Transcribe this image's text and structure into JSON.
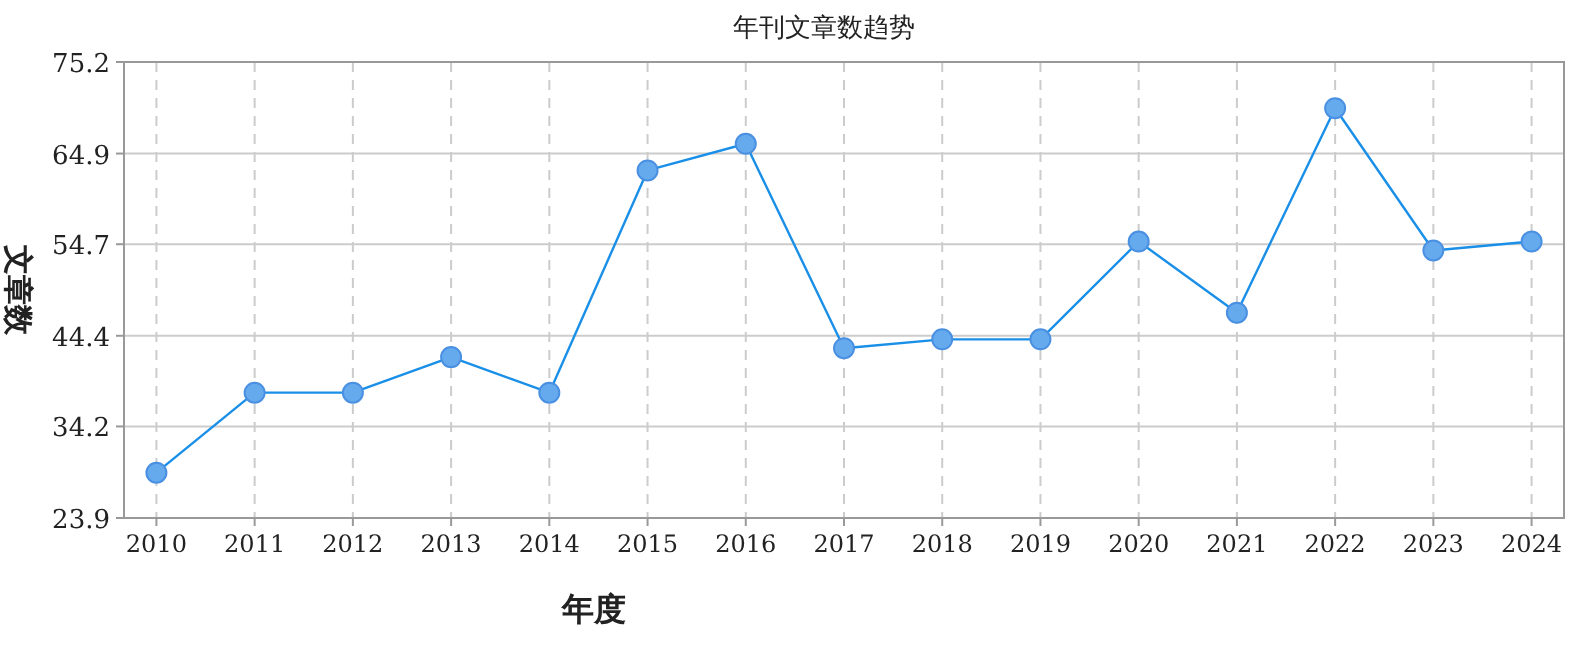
{
  "chart_data": {
    "type": "line",
    "title": "年刊文章数趋势",
    "xlabel": "年度",
    "ylabel": "文章数",
    "categories": [
      "2010",
      "2011",
      "2012",
      "2013",
      "2014",
      "2015",
      "2016",
      "2017",
      "2018",
      "2019",
      "2020",
      "2021",
      "2022",
      "2023",
      "2024"
    ],
    "series": [
      {
        "color": "#1a8fe8",
        "values": [
          29,
          38,
          38,
          42,
          38,
          63,
          66,
          43,
          44,
          44,
          55,
          47,
          70,
          54,
          55
        ]
      }
    ],
    "ylim": [
      23.9,
      75.2
    ],
    "yticks": [
      23.9,
      34.2,
      44.4,
      54.7,
      64.9,
      75.2
    ],
    "grid": true,
    "marker": "circle",
    "line_style": "solid"
  }
}
